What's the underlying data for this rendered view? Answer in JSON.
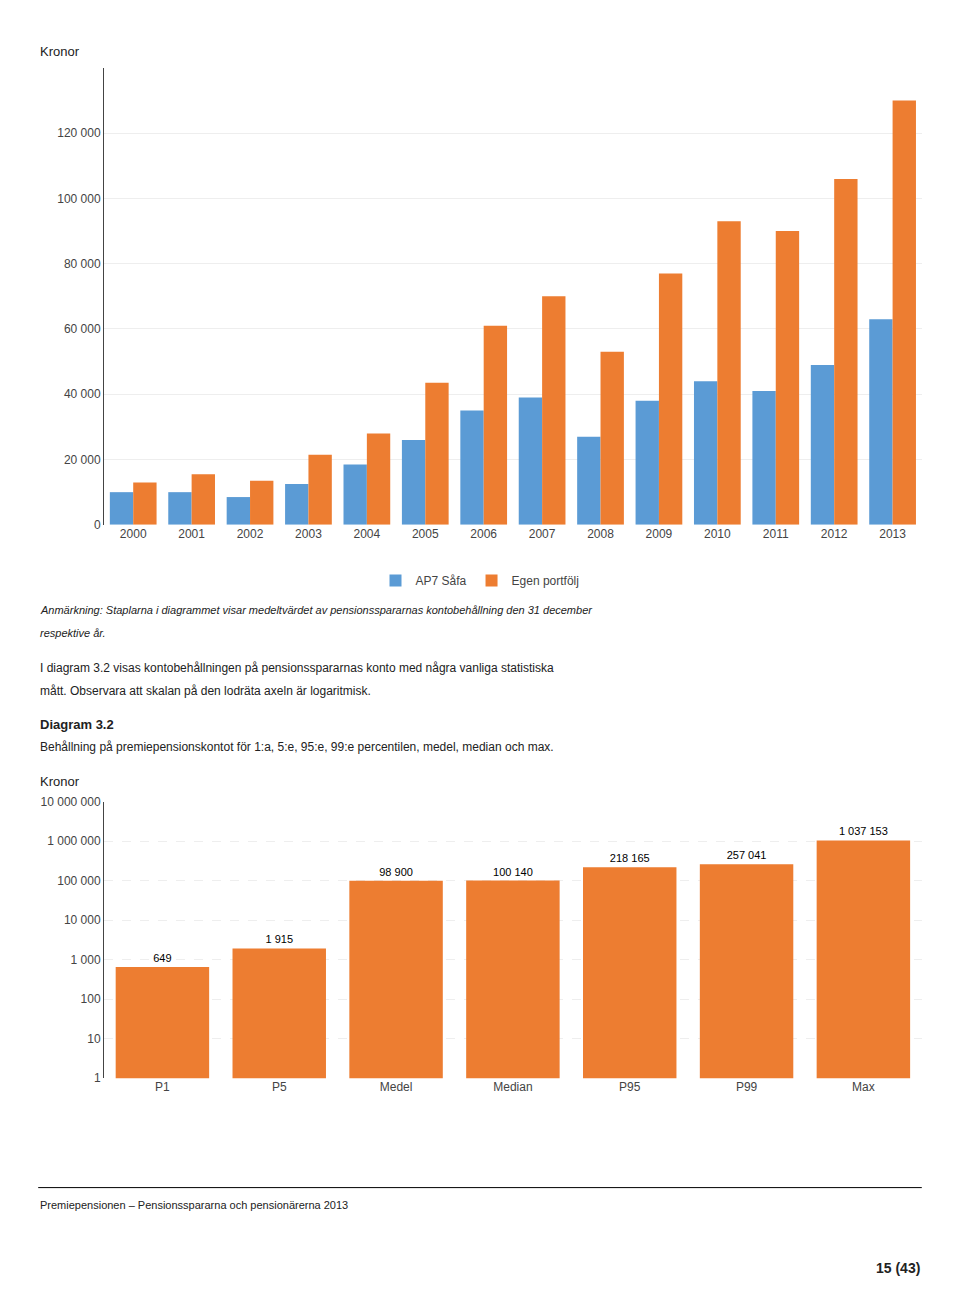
{
  "chart_data": [
    {
      "type": "bar",
      "ylabel": "Kronor",
      "categories": [
        "2000",
        "2001",
        "2002",
        "2003",
        "2004",
        "2005",
        "2006",
        "2007",
        "2008",
        "2009",
        "2010",
        "2011",
        "2012",
        "2013"
      ],
      "series": [
        {
          "name": "AP7 Såfa",
          "color": "#5B9BD5",
          "values": [
            10000,
            10000,
            8500,
            12500,
            18500,
            26000,
            35000,
            39000,
            27000,
            38000,
            44000,
            41000,
            49000,
            63000
          ]
        },
        {
          "name": "Egen portfölj",
          "color": "#ED7D31",
          "values": [
            13000,
            15500,
            13500,
            21500,
            28000,
            43500,
            61000,
            70000,
            53000,
            77000,
            93000,
            90000,
            106000,
            130000
          ]
        }
      ],
      "ylim": [
        0,
        140000
      ],
      "yticks": [
        0,
        {
          "value": 20000,
          "label": "20 000"
        },
        {
          "value": 40000,
          "label": "40 000"
        },
        {
          "value": 60000,
          "label": "60 000"
        },
        {
          "value": 80000,
          "label": "80 000"
        },
        {
          "value": 100000,
          "label": "100 000"
        },
        {
          "value": 120000,
          "label": "120 000"
        }
      ],
      "grid": true,
      "legend": "bottom",
      "annotations": [
        "Anmärkning: Staplarna i diagrammet visar medeltvärdet av pensionsspararnas kontobehållning den 31 december",
        "respektive år.",
        "I diagram 3.2 visas kontobehållningen på pensionsspararnas konto med några vanliga statistiska",
        "mått. Observara att skalan på den lodräta axeln är logaritmisk."
      ]
    },
    {
      "type": "bar",
      "title": "Diagram 3.2",
      "subtitle": "Behållning på premiepensionskontot för 1:a, 5:e, 95:e, 99:e percentilen, medel, median och max.",
      "ylabel": "Kronor",
      "categories": [
        "P1",
        "P5",
        "Medel",
        "Median",
        "P95",
        "P99",
        "Max"
      ],
      "values": [
        649,
        1915,
        98900,
        100140,
        218165,
        257041,
        1037153
      ],
      "value_labels": [
        "649",
        "1 915",
        "98 900",
        "100 140",
        "218 165",
        "257 041",
        "1 037 153"
      ],
      "data_labels": true,
      "color": "#ED7D31",
      "log": "y",
      "ylim": [
        1,
        10000000
      ],
      "yticks": [
        1,
        10,
        100,
        {
          "value": 1000,
          "label": "1 000"
        },
        {
          "value": 10000,
          "label": "10 000"
        },
        {
          "value": 100000,
          "label": "100 000"
        },
        {
          "value": 1000000,
          "label": "1 000 000"
        },
        {
          "value": 10000000,
          "label": "10 000 000"
        }
      ],
      "grid": true,
      "annotations": [
        "Premiepensionen – Pensionsspararna och pensionärerna 2013",
        "15 (43)"
      ]
    }
  ]
}
